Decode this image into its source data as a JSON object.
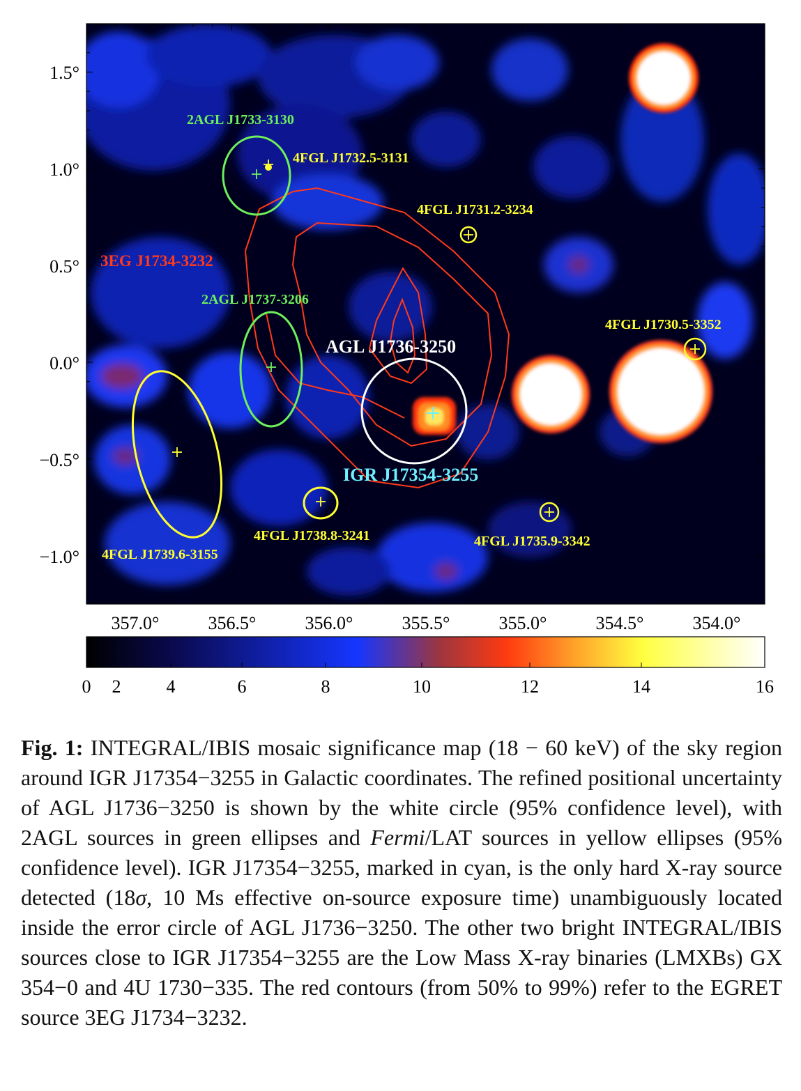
{
  "figure": {
    "map_title": "INTEGRAL/IBIS mosaic significance map",
    "y_axis": {
      "ticks": [
        {
          "value": 1.5,
          "label": "1.5°"
        },
        {
          "value": 1.0,
          "label": "1.0°"
        },
        {
          "value": 0.5,
          "label": "0.5°"
        },
        {
          "value": 0.0,
          "label": "0.0°"
        },
        {
          "value": -0.5,
          "label": "−0.5°"
        },
        {
          "value": -1.0,
          "label": "−1.0°"
        }
      ],
      "range": [
        -1.25,
        1.75
      ]
    },
    "x_axis": {
      "ticks": [
        {
          "value": 357.0,
          "label": "357.0°"
        },
        {
          "value": 356.5,
          "label": "356.5°"
        },
        {
          "value": 356.0,
          "label": "356.0°"
        },
        {
          "value": 355.5,
          "label": "355.5°"
        },
        {
          "value": 355.0,
          "label": "355.0°"
        },
        {
          "value": 354.5,
          "label": "354.5°"
        },
        {
          "value": 354.0,
          "label": "354.0°"
        }
      ],
      "range": [
        357.25,
        353.75
      ],
      "direction": "decreasing-to-right"
    },
    "colorbar": {
      "range": [
        0,
        16
      ],
      "ticks": [
        {
          "value": 0,
          "label": "0"
        },
        {
          "value": 2,
          "label": "2"
        },
        {
          "value": 4,
          "label": "4"
        },
        {
          "value": 6,
          "label": "6"
        },
        {
          "value": 8,
          "label": "8"
        },
        {
          "value": 10,
          "label": "10"
        },
        {
          "value": 12,
          "label": "12"
        },
        {
          "value": 14,
          "label": "14"
        },
        {
          "value": 16,
          "label": "16"
        }
      ],
      "colors": [
        "#000000",
        "#0a0a50",
        "#1636ff",
        "#9c3640",
        "#ff3a10",
        "#ffa22a",
        "#ffff40",
        "#ffffff"
      ]
    },
    "colors": {
      "agl2": "#6ef05a",
      "fermi": "#ffff30",
      "agl_circle": "#ffffff",
      "igr": "#6ff0ff",
      "egret": "#ff3a1a"
    },
    "labels": {
      "agl_j1733": "2AGL J1733-3130",
      "fgl_j1732": "4FGL J1732.5-3131",
      "fgl_j1731": "4FGL J1731.2-3234",
      "egret": "3EG J1734-3232",
      "agl_j1737": "2AGL J1737-3206",
      "agl_main": "AGL J1736-3250",
      "fgl_j1730": "4FGL J1730.5-3352",
      "igr": "IGR J17354-3255",
      "fgl_j1738": "4FGL J1738.8-3241",
      "fgl_j1735": "4FGL J1735.9-3342",
      "fgl_j1739": "4FGL J1739.6-3155"
    }
  },
  "caption": {
    "label": "Fig. 1:",
    "part1": " INTEGRAL/IBIS mosaic significance map (18 − 60 keV) of the sky region around IGR J17354−3255 in Galactic coordinates. The refined positional uncertainty of AGL J1736−3250 is shown by the white circle (95% confidence level), with 2AGL sources in green ellipses and ",
    "fermi": "Fermi",
    "part2": "/LAT sources in yellow ellipses (95% confidence level). IGR J17354−3255, marked in cyan, is the only hard X-ray source detected (18",
    "sigma": "σ",
    "part3": ", 10 Ms effective on-source exposure time) unambiguously located inside the error circle of AGL J1736−3250. The other two bright INTEGRAL/IBIS sources close to IGR J17354−3255 are the Low Mass X-ray binaries (LMXBs) GX 354−0 and 4U 1730−335. The red contours (from 50% to 99%) refer to the EGRET source 3EG J1734−3232."
  }
}
